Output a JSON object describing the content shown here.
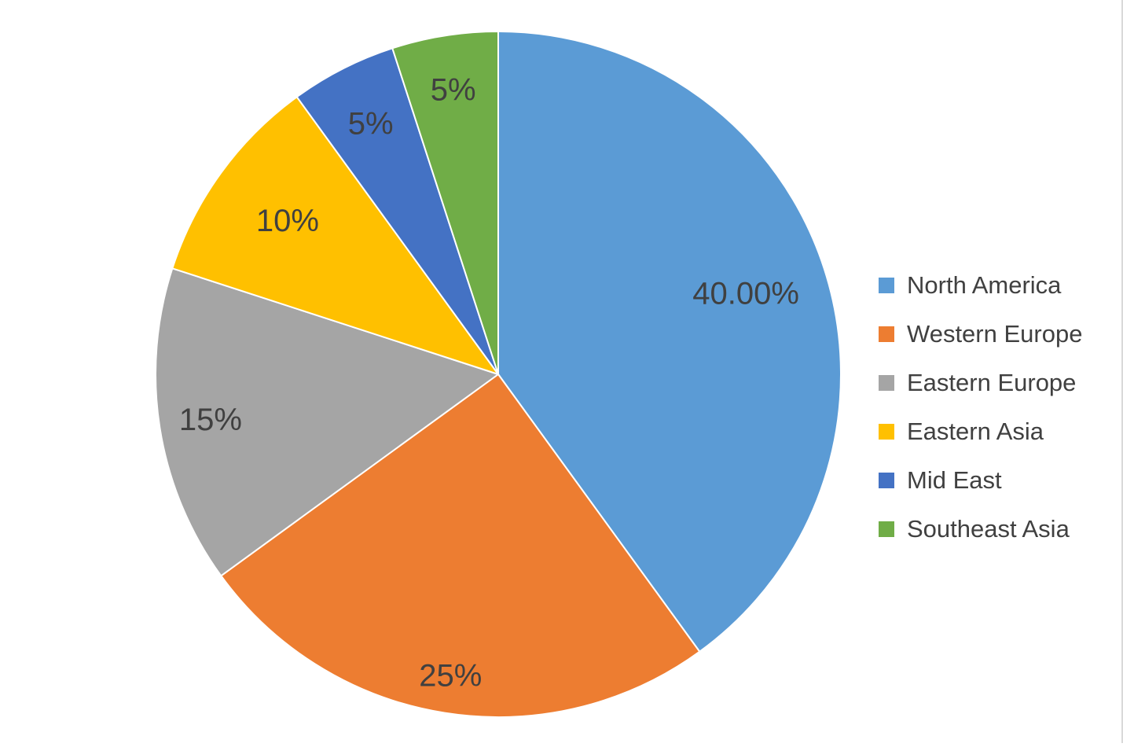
{
  "chart_data": {
    "type": "pie",
    "title": "",
    "legend_position": "right",
    "slice_order": "clockwise from 12 o'clock",
    "series": [
      {
        "categories": [
          "North America",
          "Western Europe",
          "Eastern Europe",
          "Eastern Asia",
          "Mid East",
          "Southeast Asia"
        ],
        "values": [
          40,
          25,
          15,
          10,
          5,
          5
        ],
        "labels": [
          "40.00%",
          "25%",
          "15%",
          "10%",
          "5%",
          "5%"
        ],
        "colors": [
          "#5b9bd5",
          "#ed7d31",
          "#a5a5a5",
          "#ffc000",
          "#4472c4",
          "#70ad47"
        ]
      }
    ]
  }
}
